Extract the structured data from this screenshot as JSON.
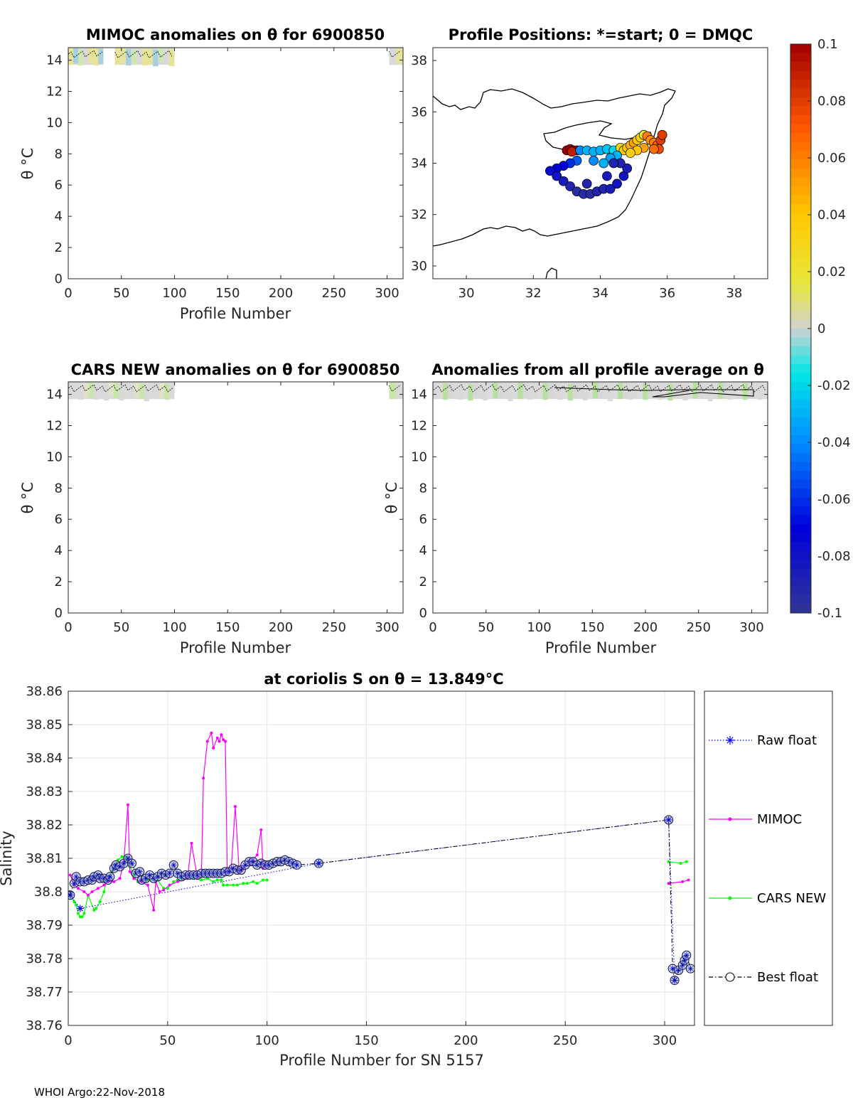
{
  "footer": "WHOI Argo:22-Nov-2018",
  "chart_data": [
    {
      "id": "mimoc",
      "type": "heatmap",
      "title": "MIMOC anomalies on θ  for 6900850",
      "xlabel": "Profile Number",
      "ylabel": "θ °C",
      "xlim": [
        0,
        315
      ],
      "ylim": [
        0,
        14.8
      ],
      "xticks": [
        0,
        50,
        100,
        150,
        200,
        250,
        300
      ],
      "yticks": [
        0,
        2,
        4,
        6,
        8,
        10,
        12,
        14
      ],
      "filled_bands": [
        [
          0,
          33
        ],
        [
          44,
          100
        ],
        [
          302,
          315
        ]
      ],
      "theta_band": [
        13.7,
        14.8
      ]
    },
    {
      "id": "positions",
      "type": "scatter",
      "title": "Profile Positions: *=start; 0 = DMQC",
      "xlim": [
        29,
        39
      ],
      "ylim": [
        29.5,
        38.5
      ],
      "xticks": [
        30,
        32,
        34,
        36,
        38
      ],
      "yticks": [
        30,
        32,
        34,
        36,
        38
      ],
      "points": [
        [
          33.0,
          34.5,
          0.1
        ],
        [
          33.1,
          34.55,
          0.1
        ],
        [
          33.2,
          34.5,
          0.1
        ],
        [
          33.3,
          34.5,
          0.1
        ],
        [
          33.15,
          34.45,
          0.09
        ],
        [
          33.4,
          34.5,
          -0.04
        ],
        [
          33.6,
          34.5,
          -0.03
        ],
        [
          33.8,
          34.45,
          -0.03
        ],
        [
          34.0,
          34.5,
          -0.03
        ],
        [
          34.2,
          34.55,
          -0.025
        ],
        [
          34.4,
          34.5,
          -0.02
        ],
        [
          34.6,
          34.6,
          0.03
        ],
        [
          34.7,
          34.5,
          0.035
        ],
        [
          34.8,
          34.6,
          0.04
        ],
        [
          34.9,
          34.7,
          0.045
        ],
        [
          35.0,
          34.8,
          0.05
        ],
        [
          35.1,
          34.9,
          0.04
        ],
        [
          35.2,
          35.0,
          0.03
        ],
        [
          35.3,
          35.1,
          0.02
        ],
        [
          35.4,
          35.05,
          0.06
        ],
        [
          35.5,
          34.9,
          0.055
        ],
        [
          35.6,
          34.8,
          0.06
        ],
        [
          35.7,
          34.7,
          0.07
        ],
        [
          35.8,
          34.9,
          0.08
        ],
        [
          35.85,
          35.1,
          0.08
        ],
        [
          35.75,
          34.55,
          0.075
        ],
        [
          35.6,
          34.55,
          0.065
        ],
        [
          35.3,
          34.6,
          0.05
        ],
        [
          35.1,
          34.5,
          0.04
        ],
        [
          34.9,
          34.4,
          0.035
        ],
        [
          34.5,
          34.3,
          -0.03
        ],
        [
          34.3,
          34.2,
          -0.035
        ],
        [
          34.1,
          34.0,
          -0.03
        ],
        [
          33.8,
          34.1,
          -0.04
        ],
        [
          33.3,
          34.1,
          -0.05
        ],
        [
          33.1,
          34.0,
          -0.06
        ],
        [
          32.9,
          33.9,
          -0.07
        ],
        [
          32.7,
          33.8,
          -0.07
        ],
        [
          32.5,
          33.7,
          -0.075
        ],
        [
          32.7,
          33.5,
          -0.08
        ],
        [
          32.9,
          33.3,
          -0.085
        ],
        [
          33.1,
          33.1,
          -0.09
        ],
        [
          33.3,
          32.9,
          -0.095
        ],
        [
          33.5,
          32.8,
          -0.095
        ],
        [
          33.7,
          32.8,
          -0.095
        ],
        [
          33.9,
          32.9,
          -0.09
        ],
        [
          34.1,
          33.0,
          -0.09
        ],
        [
          34.3,
          33.0,
          -0.085
        ],
        [
          34.5,
          33.2,
          -0.08
        ],
        [
          34.7,
          33.5,
          -0.08
        ],
        [
          34.8,
          33.8,
          -0.085
        ],
        [
          34.6,
          34.0,
          -0.09
        ],
        [
          34.4,
          34.0,
          -0.09
        ],
        [
          33.6,
          33.2,
          -0.09
        ],
        [
          34.2,
          33.5,
          -0.085
        ]
      ],
      "colorbar": {
        "range": [
          -0.1,
          0.1
        ],
        "ticks": [
          "0.1",
          "0.08",
          "0.06",
          "0.04",
          "0.02",
          "0",
          "-0.02",
          "-0.04",
          "-0.06",
          "-0.08",
          "-0.1"
        ]
      }
    },
    {
      "id": "cars",
      "type": "heatmap",
      "title": "CARS NEW anomalies on θ for 6900850",
      "xlabel": "Profile Number",
      "ylabel": "θ °C",
      "xlim": [
        0,
        315
      ],
      "ylim": [
        0,
        14.8
      ],
      "xticks": [
        0,
        50,
        100,
        150,
        200,
        250,
        300
      ],
      "yticks": [
        0,
        2,
        4,
        6,
        8,
        10,
        12,
        14
      ],
      "filled_bands": [
        [
          0,
          100
        ],
        [
          302,
          315
        ]
      ],
      "theta_band": [
        13.7,
        14.8
      ]
    },
    {
      "id": "avg",
      "type": "heatmap",
      "title": "Anomalies from all profile average on θ",
      "xlabel": "Profile Number",
      "ylabel": "θ °C",
      "xlim": [
        0,
        315
      ],
      "ylim": [
        0,
        14.8
      ],
      "xticks": [
        0,
        50,
        100,
        150,
        200,
        250,
        300
      ],
      "yticks": [
        0,
        2,
        4,
        6,
        8,
        10,
        12,
        14
      ],
      "filled_bands": [
        [
          0,
          315
        ]
      ],
      "theta_band": [
        13.7,
        14.8
      ]
    },
    {
      "id": "salinity",
      "type": "line",
      "title": "at coriolis S on θ = 13.849°C",
      "xlabel": "Profile Number for SN 5157",
      "ylabel": "Salinity",
      "xlim": [
        0,
        315
      ],
      "ylim": [
        38.76,
        38.86
      ],
      "xticks": [
        0,
        50,
        100,
        150,
        200,
        250,
        300
      ],
      "yticks": [
        "38.76",
        "38.77",
        "38.78",
        "38.79",
        "38.8",
        "38.81",
        "38.82",
        "38.83",
        "38.84",
        "38.85",
        "38.86"
      ],
      "grid": true,
      "legend_position": "right-outside",
      "series": [
        {
          "name": "Raw float",
          "color": "#0000ff",
          "style": "dotted",
          "marker": "star",
          "x": [
            1,
            6,
            126,
            302,
            305
          ],
          "y": [
            38.799,
            38.795,
            38.8085,
            38.8215,
            38.7735
          ]
        },
        {
          "name": "MIMOC",
          "color": "#ff00ff",
          "style": "solid",
          "marker": "dot",
          "x": [
            1,
            3,
            5,
            8,
            10,
            12,
            15,
            18,
            20,
            23,
            26,
            28,
            30,
            31,
            33,
            36,
            40,
            43,
            44,
            46,
            48,
            51,
            55,
            60,
            62,
            65,
            67,
            68,
            70,
            72,
            73,
            75,
            76,
            77,
            78,
            79,
            80,
            82,
            84,
            86,
            88,
            92,
            95,
            97,
            98,
            100,
            302,
            309,
            312
          ],
          "y": [
            38.805,
            38.802,
            38.801,
            38.8,
            38.799,
            38.8,
            38.801,
            38.802,
            38.803,
            38.803,
            38.804,
            38.809,
            38.826,
            38.806,
            38.804,
            38.803,
            38.802,
            38.7945,
            38.803,
            38.8,
            38.8005,
            38.802,
            38.803,
            38.804,
            38.8145,
            38.804,
            38.805,
            38.834,
            38.845,
            38.8475,
            38.843,
            38.846,
            38.845,
            38.847,
            38.8455,
            38.845,
            38.806,
            38.807,
            38.8255,
            38.806,
            38.807,
            38.809,
            38.811,
            38.8185,
            38.807,
            38.808,
            38.8025,
            38.803,
            38.8035
          ]
        },
        {
          "name": "CARS NEW",
          "color": "#00ff00",
          "style": "solid",
          "marker": "dot",
          "x": [
            1,
            3,
            4,
            5,
            6,
            7,
            8,
            10,
            13,
            14,
            16,
            18,
            19,
            22,
            25,
            27,
            29,
            30,
            31,
            33,
            35,
            37,
            40,
            45,
            48,
            50,
            53,
            55,
            57,
            60,
            63,
            67,
            70,
            73,
            75,
            77,
            78,
            80,
            83,
            85,
            88,
            90,
            93,
            95,
            98,
            100,
            302,
            308,
            311
          ],
          "y": [
            38.799,
            38.797,
            38.796,
            38.7935,
            38.7925,
            38.7925,
            38.7935,
            38.799,
            38.7945,
            38.795,
            38.797,
            38.8,
            38.803,
            38.806,
            38.8095,
            38.8105,
            38.8105,
            38.8095,
            38.8075,
            38.805,
            38.803,
            38.8035,
            38.8035,
            38.8035,
            38.801,
            38.801,
            38.803,
            38.8035,
            38.804,
            38.804,
            38.804,
            38.8035,
            38.804,
            38.803,
            38.8035,
            38.8035,
            38.802,
            38.802,
            38.802,
            38.802,
            38.8025,
            38.8025,
            38.803,
            38.8025,
            38.8035,
            38.8035,
            38.809,
            38.8085,
            38.809
          ]
        },
        {
          "name": "Best float",
          "color": "#000000",
          "style": "dashdot",
          "marker": "circle",
          "x": [
            1,
            3,
            4,
            6,
            8,
            10,
            12,
            13,
            15,
            16,
            18,
            20,
            21,
            23,
            24,
            26,
            28,
            30,
            32,
            34,
            36,
            37,
            39,
            41,
            43,
            45,
            47,
            49,
            51,
            53,
            55,
            57,
            59,
            61,
            63,
            65,
            67,
            69,
            71,
            73,
            75,
            77,
            79,
            81,
            83,
            85,
            87,
            89,
            91,
            93,
            95,
            97,
            99,
            101,
            103,
            105,
            107,
            109,
            111,
            113,
            115,
            126,
            302,
            304,
            305,
            307,
            309,
            310,
            311,
            313
          ],
          "y": [
            38.799,
            38.8025,
            38.8045,
            38.803,
            38.803,
            38.8035,
            38.8035,
            38.8045,
            38.805,
            38.804,
            38.804,
            38.8035,
            38.8045,
            38.807,
            38.808,
            38.8075,
            38.8085,
            38.81,
            38.8085,
            38.8055,
            38.806,
            38.8035,
            38.804,
            38.805,
            38.804,
            38.8045,
            38.8055,
            38.805,
            38.8055,
            38.808,
            38.8055,
            38.8045,
            38.805,
            38.805,
            38.805,
            38.805,
            38.8055,
            38.8055,
            38.8055,
            38.8055,
            38.8055,
            38.8055,
            38.806,
            38.806,
            38.807,
            38.8065,
            38.8065,
            38.808,
            38.809,
            38.809,
            38.808,
            38.8085,
            38.808,
            38.808,
            38.8085,
            38.809,
            38.809,
            38.8095,
            38.809,
            38.8085,
            38.808,
            38.8085,
            38.8215,
            38.777,
            38.7735,
            38.7765,
            38.778,
            38.7795,
            38.781,
            38.777
          ]
        }
      ]
    }
  ]
}
